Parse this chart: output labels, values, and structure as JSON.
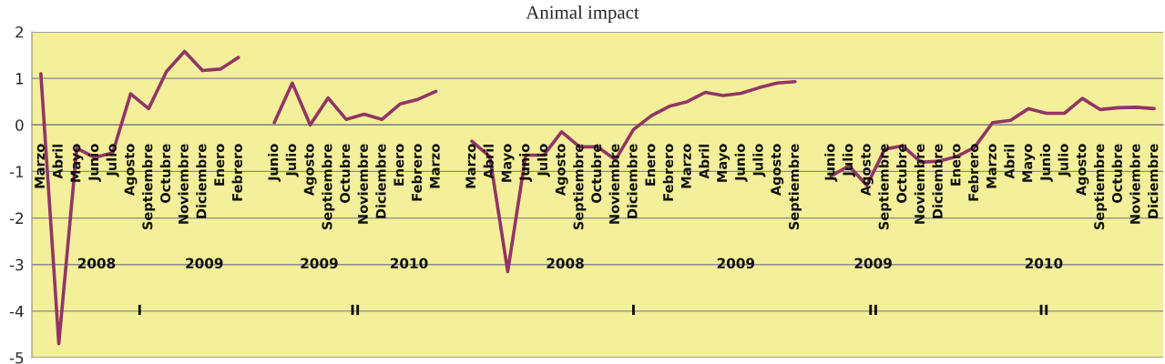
{
  "chart_data": {
    "type": "line",
    "title": "Animal impact",
    "categories": [
      "Marzo",
      "Abril",
      "Mayo",
      "Junio",
      "Julio",
      "Agosto",
      "Septiembre",
      "Octubre",
      "Noviembre",
      "Diciembre",
      "Enero",
      "Febrero",
      null,
      "Junio",
      "Julio",
      "Agosto",
      "Septiembre",
      "Octubre",
      "Noviembre",
      "Diciembre",
      "Enero",
      "Febrero",
      "Marzo",
      null,
      "Marzo",
      "Abril",
      "Mayo",
      "Junio",
      "Julio",
      "Agosto",
      "Septiembre",
      "Octubre",
      "Noviembre",
      "Diciembre",
      "Enero",
      "Febrero",
      "Marzo",
      "Abril",
      "Mayo",
      "Junio",
      "Julio",
      "Agosto",
      "Septiembre",
      null,
      "Junio",
      "Julio",
      "Agosto",
      "Septiembre",
      "Octubre",
      "Noviembre",
      "Diciembre",
      "Enero",
      "Febrero",
      "Marzo",
      "Abril",
      "Mayo",
      "Junio",
      "Julio",
      "Agosto",
      "Septiembre",
      "Octubre",
      "Noviembre",
      "Diciembre"
    ],
    "series": [
      {
        "color": "#923565",
        "values": [
          1.1,
          -4.7,
          -0.5,
          -0.7,
          -0.6,
          0.67,
          0.35,
          1.15,
          1.58,
          1.17,
          1.2,
          1.45,
          null,
          0.05,
          0.9,
          0.0,
          0.58,
          0.12,
          0.23,
          0.12,
          0.45,
          0.55,
          0.72,
          null,
          -0.35,
          -0.68,
          -3.15,
          -0.65,
          -0.65,
          -0.15,
          -0.47,
          -0.47,
          -0.75,
          -0.1,
          0.2,
          0.4,
          0.5,
          0.7,
          0.63,
          0.68,
          0.8,
          0.9,
          0.93,
          null,
          -1.1,
          -0.88,
          -1.3,
          -0.52,
          -0.45,
          -0.8,
          -0.78,
          -0.68,
          -0.48,
          0.05,
          0.1,
          0.35,
          0.25,
          0.25,
          0.57,
          0.33,
          0.37,
          0.38,
          0.35
        ]
      }
    ],
    "ylim": [
      -5,
      2
    ],
    "yticks": [
      -5,
      -4,
      -3,
      -2,
      -1,
      0,
      1,
      2
    ],
    "grid": "y",
    "marker": "none",
    "line_style": "solid",
    "annotations": [
      "2008",
      "2009",
      "2009",
      "2010",
      "2008",
      "2009",
      "2009",
      "2010",
      "I",
      "II",
      "I",
      "II",
      "II"
    ]
  }
}
